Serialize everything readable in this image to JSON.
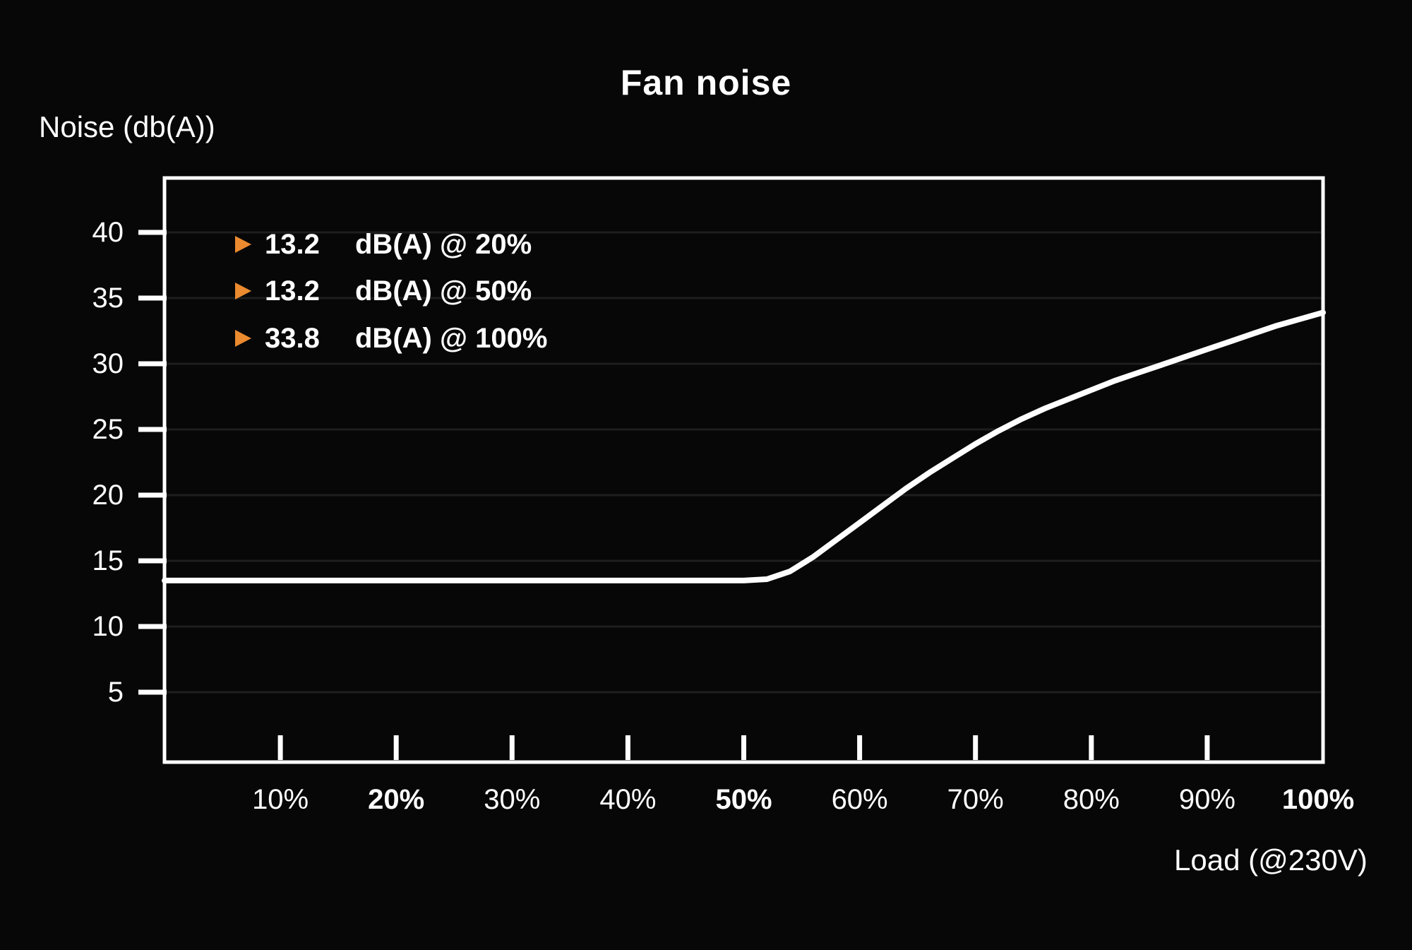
{
  "title": "Fan noise",
  "y_axis_label": "Noise (db(A))",
  "x_axis_label": "Load (@230V)",
  "colors": {
    "background": "#070707",
    "text": "#FFFFFF",
    "curve": "#FFFFFF",
    "axis": "#FFFFFF",
    "grid": "#1E1E1E",
    "accent_orange": "#EB8A2F"
  },
  "legend": [
    {
      "marker": "triangle-right",
      "value": "13.2",
      "label": "dB(A) @ 20%"
    },
    {
      "marker": "triangle-right",
      "value": "13.2",
      "label": "dB(A) @ 50%"
    },
    {
      "marker": "triangle-right",
      "value": "33.8",
      "label": "dB(A) @ 100%"
    }
  ],
  "chart_data": {
    "type": "line",
    "title": "Fan noise",
    "xlabel": "Load (@230V)",
    "ylabel": "Noise (db(A))",
    "xlim": [
      0,
      100
    ],
    "ylim": [
      0,
      44
    ],
    "grid": "horizontal-only",
    "legend_position": "top-left-inside",
    "x_ticks": [
      {
        "label": "10%",
        "value": 10,
        "bold": false
      },
      {
        "label": "20%",
        "value": 20,
        "bold": true
      },
      {
        "label": "30%",
        "value": 30,
        "bold": false
      },
      {
        "label": "40%",
        "value": 40,
        "bold": false
      },
      {
        "label": "50%",
        "value": 50,
        "bold": true
      },
      {
        "label": "60%",
        "value": 60,
        "bold": false
      },
      {
        "label": "70%",
        "value": 70,
        "bold": false
      },
      {
        "label": "80%",
        "value": 80,
        "bold": false
      },
      {
        "label": "90%",
        "value": 90,
        "bold": false
      },
      {
        "label": "100%",
        "value": 100,
        "bold": true
      }
    ],
    "y_ticks": [
      {
        "label": "40",
        "value": 40
      },
      {
        "label": "35",
        "value": 35
      },
      {
        "label": "30",
        "value": 30
      },
      {
        "label": "25",
        "value": 25
      },
      {
        "label": "20",
        "value": 20
      },
      {
        "label": "15",
        "value": 15
      },
      {
        "label": "10",
        "value": 10
      },
      {
        "label": "5",
        "value": 5
      }
    ],
    "measurements": [
      {
        "noise_db": 13.2,
        "load_pct": 20
      },
      {
        "noise_db": 13.2,
        "load_pct": 50
      },
      {
        "noise_db": 33.8,
        "load_pct": 100
      }
    ],
    "series": [
      {
        "name": "fan-noise-curve",
        "points": [
          [
            0,
            13.5
          ],
          [
            5,
            13.5
          ],
          [
            10,
            13.5
          ],
          [
            15,
            13.5
          ],
          [
            20,
            13.5
          ],
          [
            25,
            13.5
          ],
          [
            30,
            13.5
          ],
          [
            35,
            13.5
          ],
          [
            40,
            13.5
          ],
          [
            45,
            13.5
          ],
          [
            50,
            13.5
          ],
          [
            52,
            13.6
          ],
          [
            54,
            14.2
          ],
          [
            56,
            15.3
          ],
          [
            58,
            16.6
          ],
          [
            60,
            17.9
          ],
          [
            62,
            19.2
          ],
          [
            64,
            20.5
          ],
          [
            66,
            21.7
          ],
          [
            68,
            22.8
          ],
          [
            70,
            23.9
          ],
          [
            72,
            24.9
          ],
          [
            74,
            25.8
          ],
          [
            76,
            26.6
          ],
          [
            78,
            27.3
          ],
          [
            80,
            28.0
          ],
          [
            82,
            28.7
          ],
          [
            84,
            29.3
          ],
          [
            86,
            29.9
          ],
          [
            88,
            30.5
          ],
          [
            90,
            31.1
          ],
          [
            92,
            31.7
          ],
          [
            94,
            32.3
          ],
          [
            96,
            32.9
          ],
          [
            98,
            33.4
          ],
          [
            100,
            33.9
          ]
        ]
      }
    ]
  }
}
